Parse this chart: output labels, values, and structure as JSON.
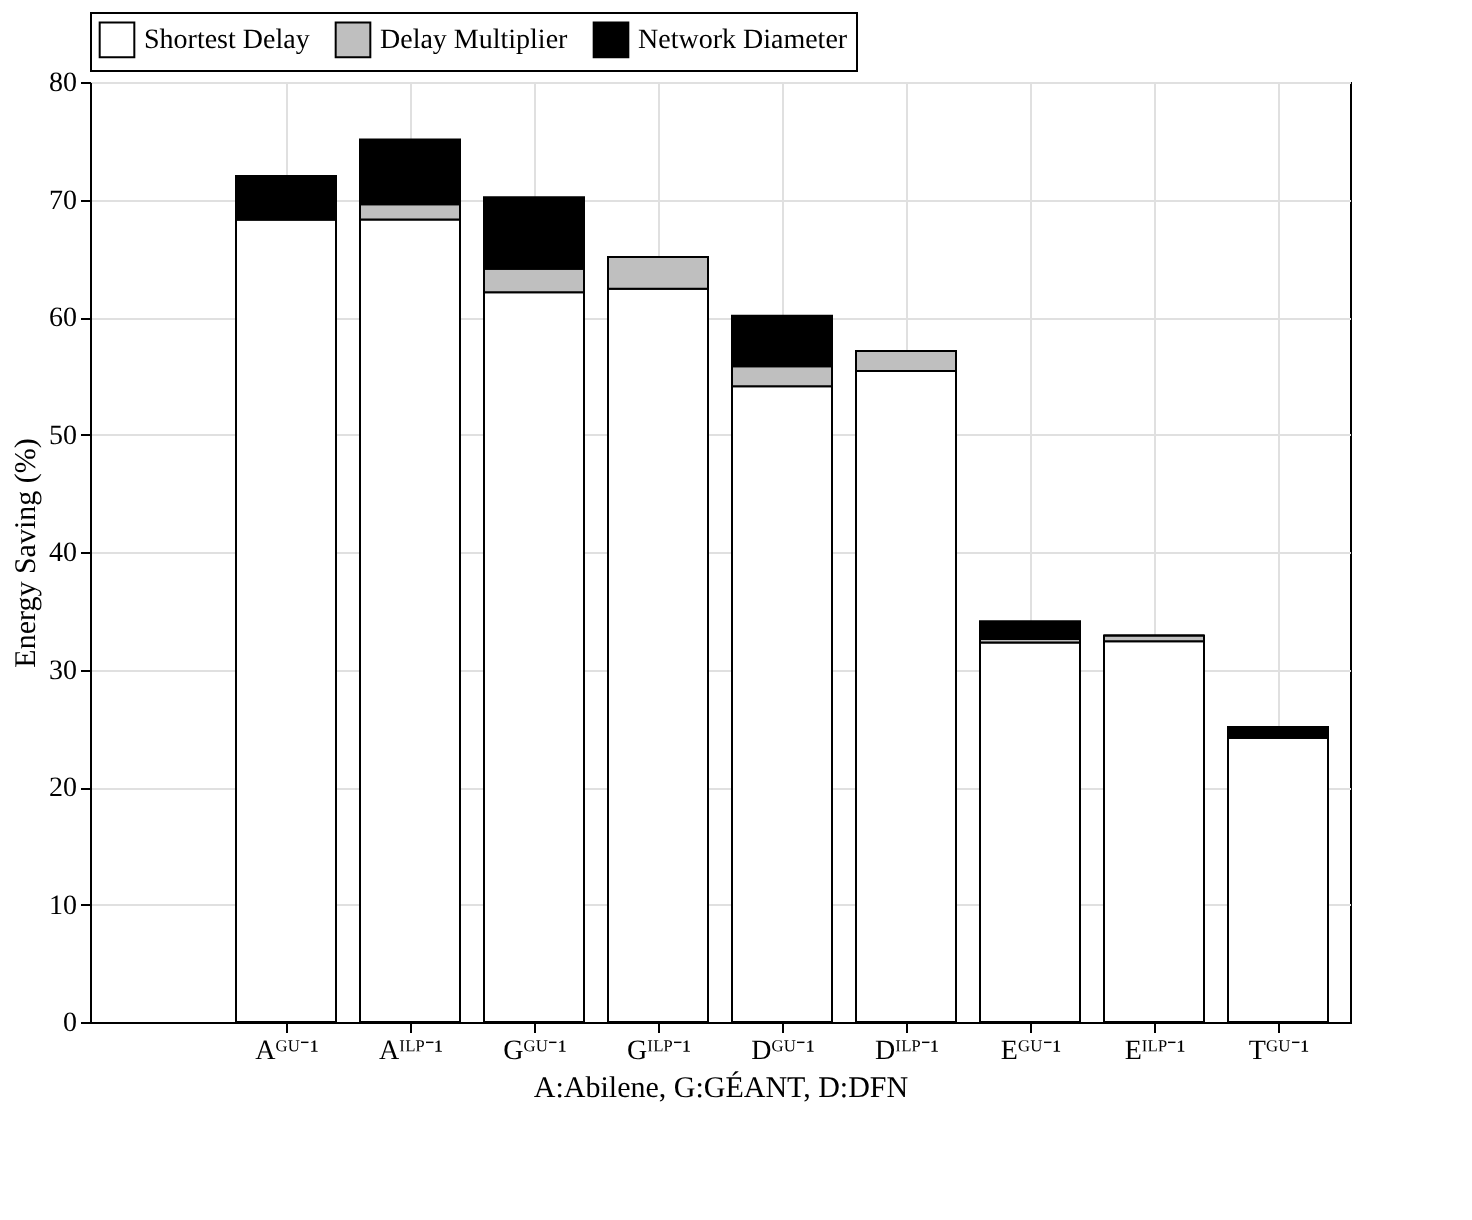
{
  "chart_data": {
    "type": "bar",
    "stacked": true,
    "categories": [
      "Aᴳᵁ⁻¹",
      "Aᴵᴸᴾ⁻¹",
      "Gᴳᵁ⁻¹",
      "Gᴵᴸᴾ⁻¹",
      "Dᴳᵁ⁻¹",
      "Dᴵᴸᴾ⁻¹",
      "Eᴳᵁ⁻¹",
      "Eᴵᴸᴾ⁻¹",
      "Tᴳᵁ⁻¹"
    ],
    "series": [
      {
        "name": "Shortest Delay",
        "color": "#ffffff",
        "values": [
          68.3,
          68.3,
          62.1,
          62.4,
          54.1,
          55.4,
          32.3,
          32.4,
          24.2
        ]
      },
      {
        "name": "Delay Multiplier",
        "color": "#bfbfbf",
        "values": [
          0,
          1.3,
          2.0,
          2.7,
          1.7,
          1.7,
          0.3,
          0.5,
          0
        ]
      },
      {
        "name": "Network Diameter",
        "color": "#000000",
        "values": [
          3.7,
          5.5,
          6.1,
          0,
          4.3,
          0,
          1.5,
          0,
          0.9
        ]
      }
    ],
    "ylabel": "Energy Saving (%)",
    "xlabel": "A:Abilene, G:GÉANT, D:DFN",
    "ylim": [
      0,
      80
    ],
    "yticks": [
      0,
      10,
      20,
      30,
      40,
      50,
      60,
      70,
      80
    ],
    "grid": true,
    "legend": "top"
  }
}
